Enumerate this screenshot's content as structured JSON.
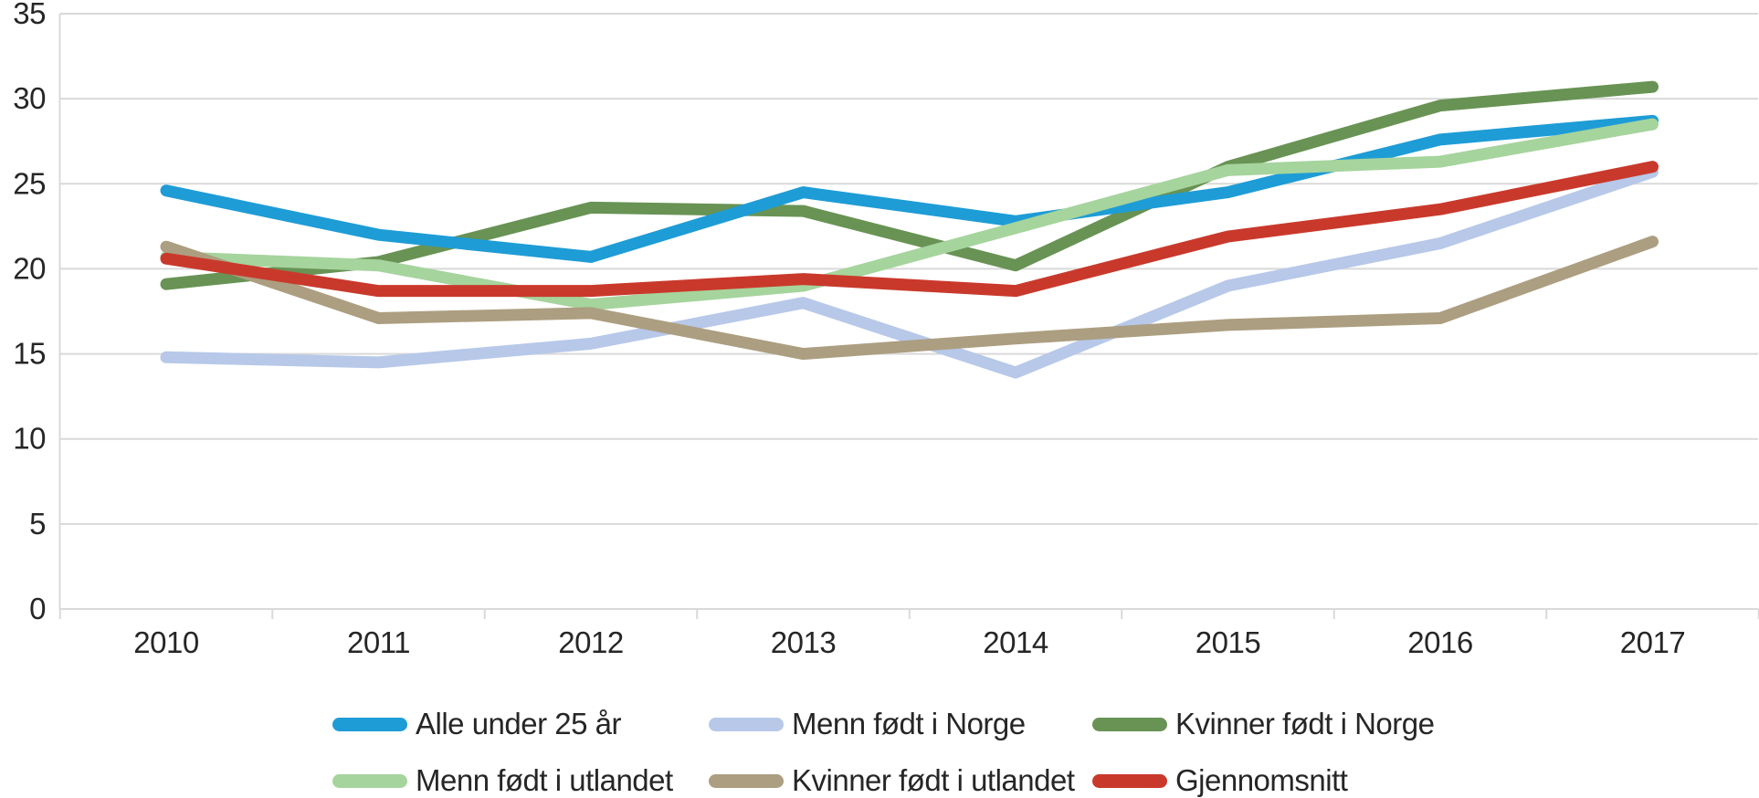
{
  "chart_data": {
    "type": "line",
    "title": "",
    "xlabel": "",
    "ylabel": "",
    "categories": [
      "2010",
      "2011",
      "2012",
      "2013",
      "2014",
      "2015",
      "2016",
      "2017"
    ],
    "series": [
      {
        "name": "Alle under 25 år",
        "color": "#1E9CD6",
        "values": [
          24.6,
          22.0,
          20.7,
          24.5,
          22.8,
          24.5,
          27.6,
          28.7
        ]
      },
      {
        "name": "Menn født i Norge",
        "color": "#B7C8E9",
        "values": [
          14.8,
          14.5,
          15.6,
          18.0,
          13.9,
          19.0,
          21.5,
          25.7
        ]
      },
      {
        "name": "Kvinner født i Norge",
        "color": "#689354",
        "values": [
          19.1,
          20.4,
          23.6,
          23.4,
          20.2,
          26.0,
          29.6,
          30.7
        ]
      },
      {
        "name": "Menn født i utlandet",
        "color": "#A6D49D",
        "values": [
          20.7,
          20.2,
          17.9,
          19.0,
          22.4,
          25.8,
          26.3,
          28.5
        ]
      },
      {
        "name": "Kvinner født i utlandet",
        "color": "#AC9E80",
        "values": [
          21.3,
          17.1,
          17.4,
          15.0,
          15.9,
          16.7,
          17.1,
          21.6
        ]
      },
      {
        "name": "Gjennomsnitt",
        "color": "#C9392B",
        "values": [
          20.6,
          18.7,
          18.7,
          19.4,
          18.7,
          21.9,
          23.5,
          26.0
        ]
      }
    ],
    "y_ticks": [
      0,
      5,
      10,
      15,
      20,
      25,
      30,
      35
    ],
    "ylim": [
      0,
      35
    ],
    "grid": true,
    "legend_position": "bottom",
    "colors": {
      "gridline": "#D9D9D9",
      "axis_text": "#262626",
      "background": "#FFFFFF"
    }
  }
}
